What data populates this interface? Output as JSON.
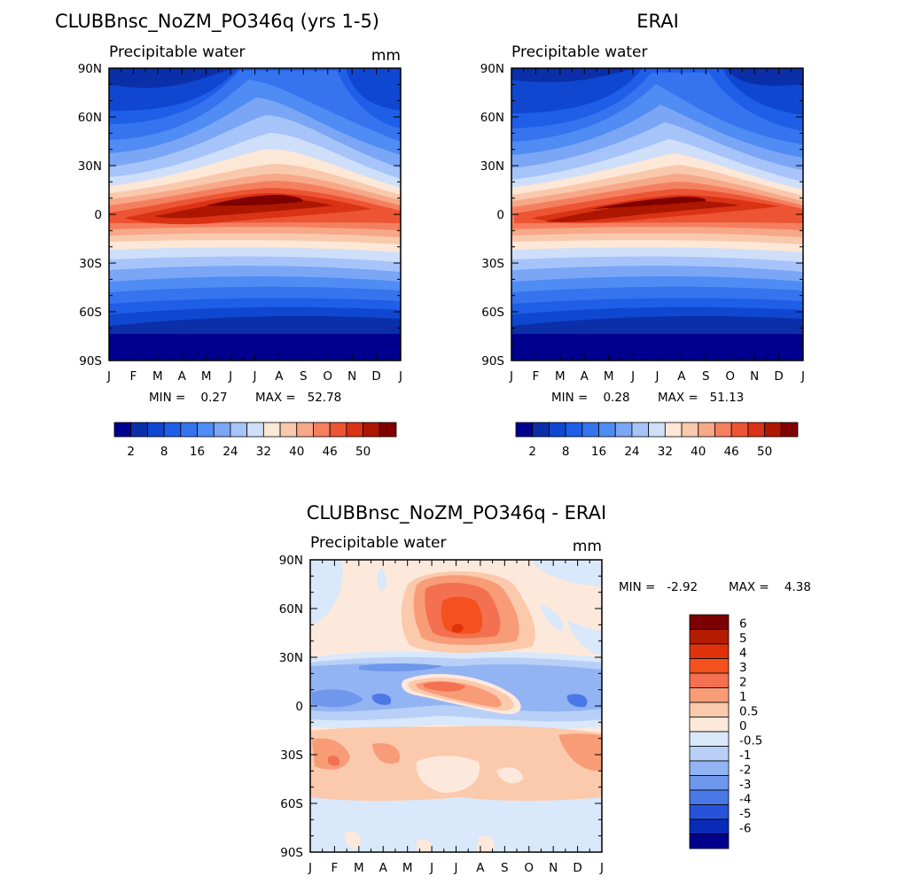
{
  "chart_data": [
    {
      "type": "heatmap",
      "title": "CLUBBnsc_NoZM_PO346q (yrs 1-5)",
      "subtitle": "Precipitable water",
      "units": "mm",
      "x_ticks": [
        "J",
        "F",
        "M",
        "A",
        "M",
        "J",
        "J",
        "A",
        "S",
        "O",
        "N",
        "D",
        "J"
      ],
      "y_ticks": [
        "90N",
        "60N",
        "30N",
        "0",
        "30S",
        "60S",
        "90S"
      ],
      "min_label": "MIN =    0.27",
      "max_label": "MAX =   52.78",
      "colorbar": {
        "labels": [
          "2",
          "8",
          "16",
          "24",
          "32",
          "40",
          "46",
          "50"
        ],
        "levels": [
          2,
          4,
          8,
          12,
          16,
          20,
          24,
          28,
          32,
          36,
          40,
          44,
          46,
          48,
          50
        ],
        "colors": [
          "#00008f",
          "#0a2fa8",
          "#0f47d1",
          "#1f5ee6",
          "#3574ee",
          "#4f8cf3",
          "#7ba6f6",
          "#a6c4f9",
          "#cfdff9",
          "#fde7d6",
          "#f9c9ad",
          "#f6a888",
          "#f47f5f",
          "#ed5433",
          "#d93214",
          "#ad1600",
          "#800000"
        ]
      },
      "stats": {
        "min": 0.27,
        "max": 52.78
      }
    },
    {
      "type": "heatmap",
      "title": "ERAI",
      "subtitle": "Precipitable water",
      "units": "",
      "x_ticks": [
        "J",
        "F",
        "M",
        "A",
        "M",
        "J",
        "J",
        "A",
        "S",
        "O",
        "N",
        "D",
        "J"
      ],
      "y_ticks": [
        "90N",
        "60N",
        "30N",
        "0",
        "30S",
        "60S",
        "90S"
      ],
      "min_label": "MIN =    0.28",
      "max_label": "MAX =   51.13",
      "colorbar": {
        "labels": [
          "2",
          "8",
          "16",
          "24",
          "32",
          "40",
          "46",
          "50"
        ]
      },
      "stats": {
        "min": 0.28,
        "max": 51.13
      }
    },
    {
      "type": "heatmap",
      "title": "CLUBBnsc_NoZM_PO346q - ERAI",
      "subtitle": "Precipitable water",
      "units": "mm",
      "x_ticks": [
        "J",
        "F",
        "M",
        "A",
        "M",
        "J",
        "J",
        "A",
        "S",
        "O",
        "N",
        "D",
        "J"
      ],
      "y_ticks": [
        "90N",
        "60N",
        "30N",
        "0",
        "30S",
        "60S",
        "90S"
      ],
      "min_label": "MIN =   -2.92",
      "max_label": "MAX =    4.38",
      "colorbar": {
        "labels": [
          "6",
          "5",
          "4",
          "3",
          "2",
          "1",
          "0.5",
          "0",
          "-0.5",
          "-1",
          "-2",
          "-3",
          "-4",
          "-5",
          "-6"
        ],
        "colors": [
          "#7d0000",
          "#b41c00",
          "#e0320a",
          "#f4511e",
          "#f37050",
          "#f89c78",
          "#fbc9ab",
          "#fde9dc",
          "#d9e8fa",
          "#b8d0f7",
          "#93b4f2",
          "#6f97ec",
          "#4a78e6",
          "#2653d9",
          "#0a2bb8",
          "#00008f"
        ]
      },
      "stats": {
        "min": -2.92,
        "max": 4.38
      }
    }
  ]
}
